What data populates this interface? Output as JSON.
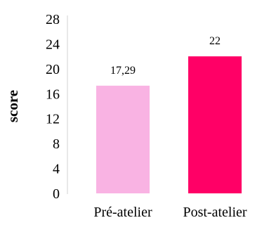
{
  "chart_data": {
    "type": "bar",
    "categories": [
      "Pré-atelier",
      "Post-atelier"
    ],
    "values": [
      17.29,
      22
    ],
    "data_labels": [
      "17,29",
      "22"
    ],
    "colors": [
      "#f9b3e3",
      "#ff0066"
    ],
    "ylabel": "score",
    "ylim": [
      0,
      28
    ],
    "yticks": [
      0,
      4,
      8,
      12,
      16,
      20,
      24,
      28
    ],
    "grid": false,
    "legend": "none"
  }
}
